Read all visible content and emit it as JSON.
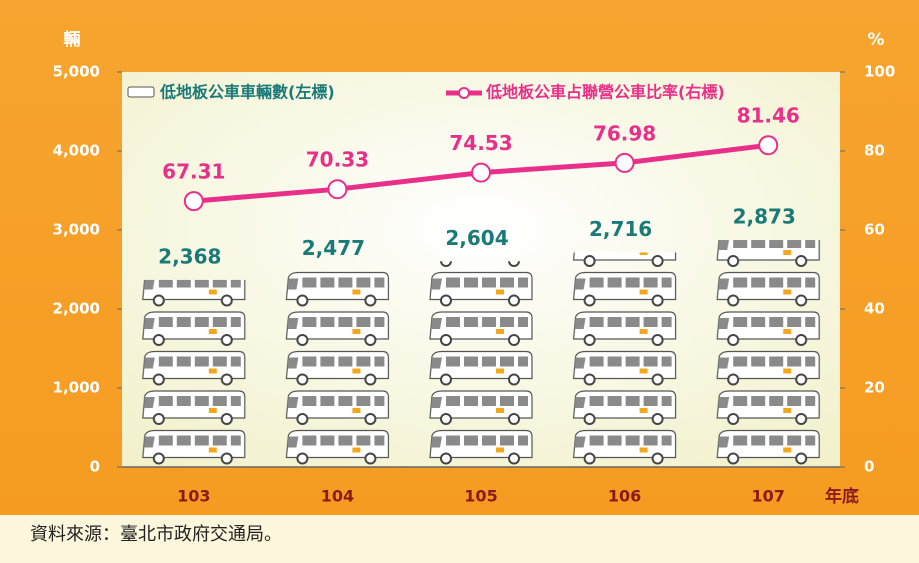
{
  "chart_data": {
    "type": "bar_line",
    "y_label": "輛",
    "y2_label": "%",
    "x_label": "年底",
    "categories": [
      "103",
      "104",
      "105",
      "106",
      "107"
    ],
    "series": [
      {
        "name": "低地板公車車輛數(左標)",
        "type": "bar",
        "color": "#1a7a78",
        "values": [
          2368,
          2477,
          2604,
          2716,
          2873
        ],
        "value_labels": [
          "2,368",
          "2,477",
          "2,604",
          "2,716",
          "2,873"
        ]
      },
      {
        "name": "低地板公車占聯營公車比率(右標)",
        "type": "line",
        "axis": "y2",
        "color": "#e8308a",
        "values": [
          67.31,
          70.33,
          74.53,
          76.98,
          81.46
        ]
      }
    ],
    "ylim": [
      0,
      5000
    ],
    "yticks": [
      0,
      {
        "value": 1000,
        "label": "1,000"
      },
      {
        "value": 2000,
        "label": "2,000"
      },
      {
        "value": 3000,
        "label": "3,000"
      },
      {
        "value": 4000,
        "label": "4,000"
      },
      {
        "value": 5000,
        "label": "5,000"
      }
    ],
    "y2lim": [
      0,
      100
    ],
    "y2ticks": [
      0,
      20,
      40,
      60,
      80,
      100
    ],
    "source": "資料來源：臺北市政府交通局。"
  }
}
